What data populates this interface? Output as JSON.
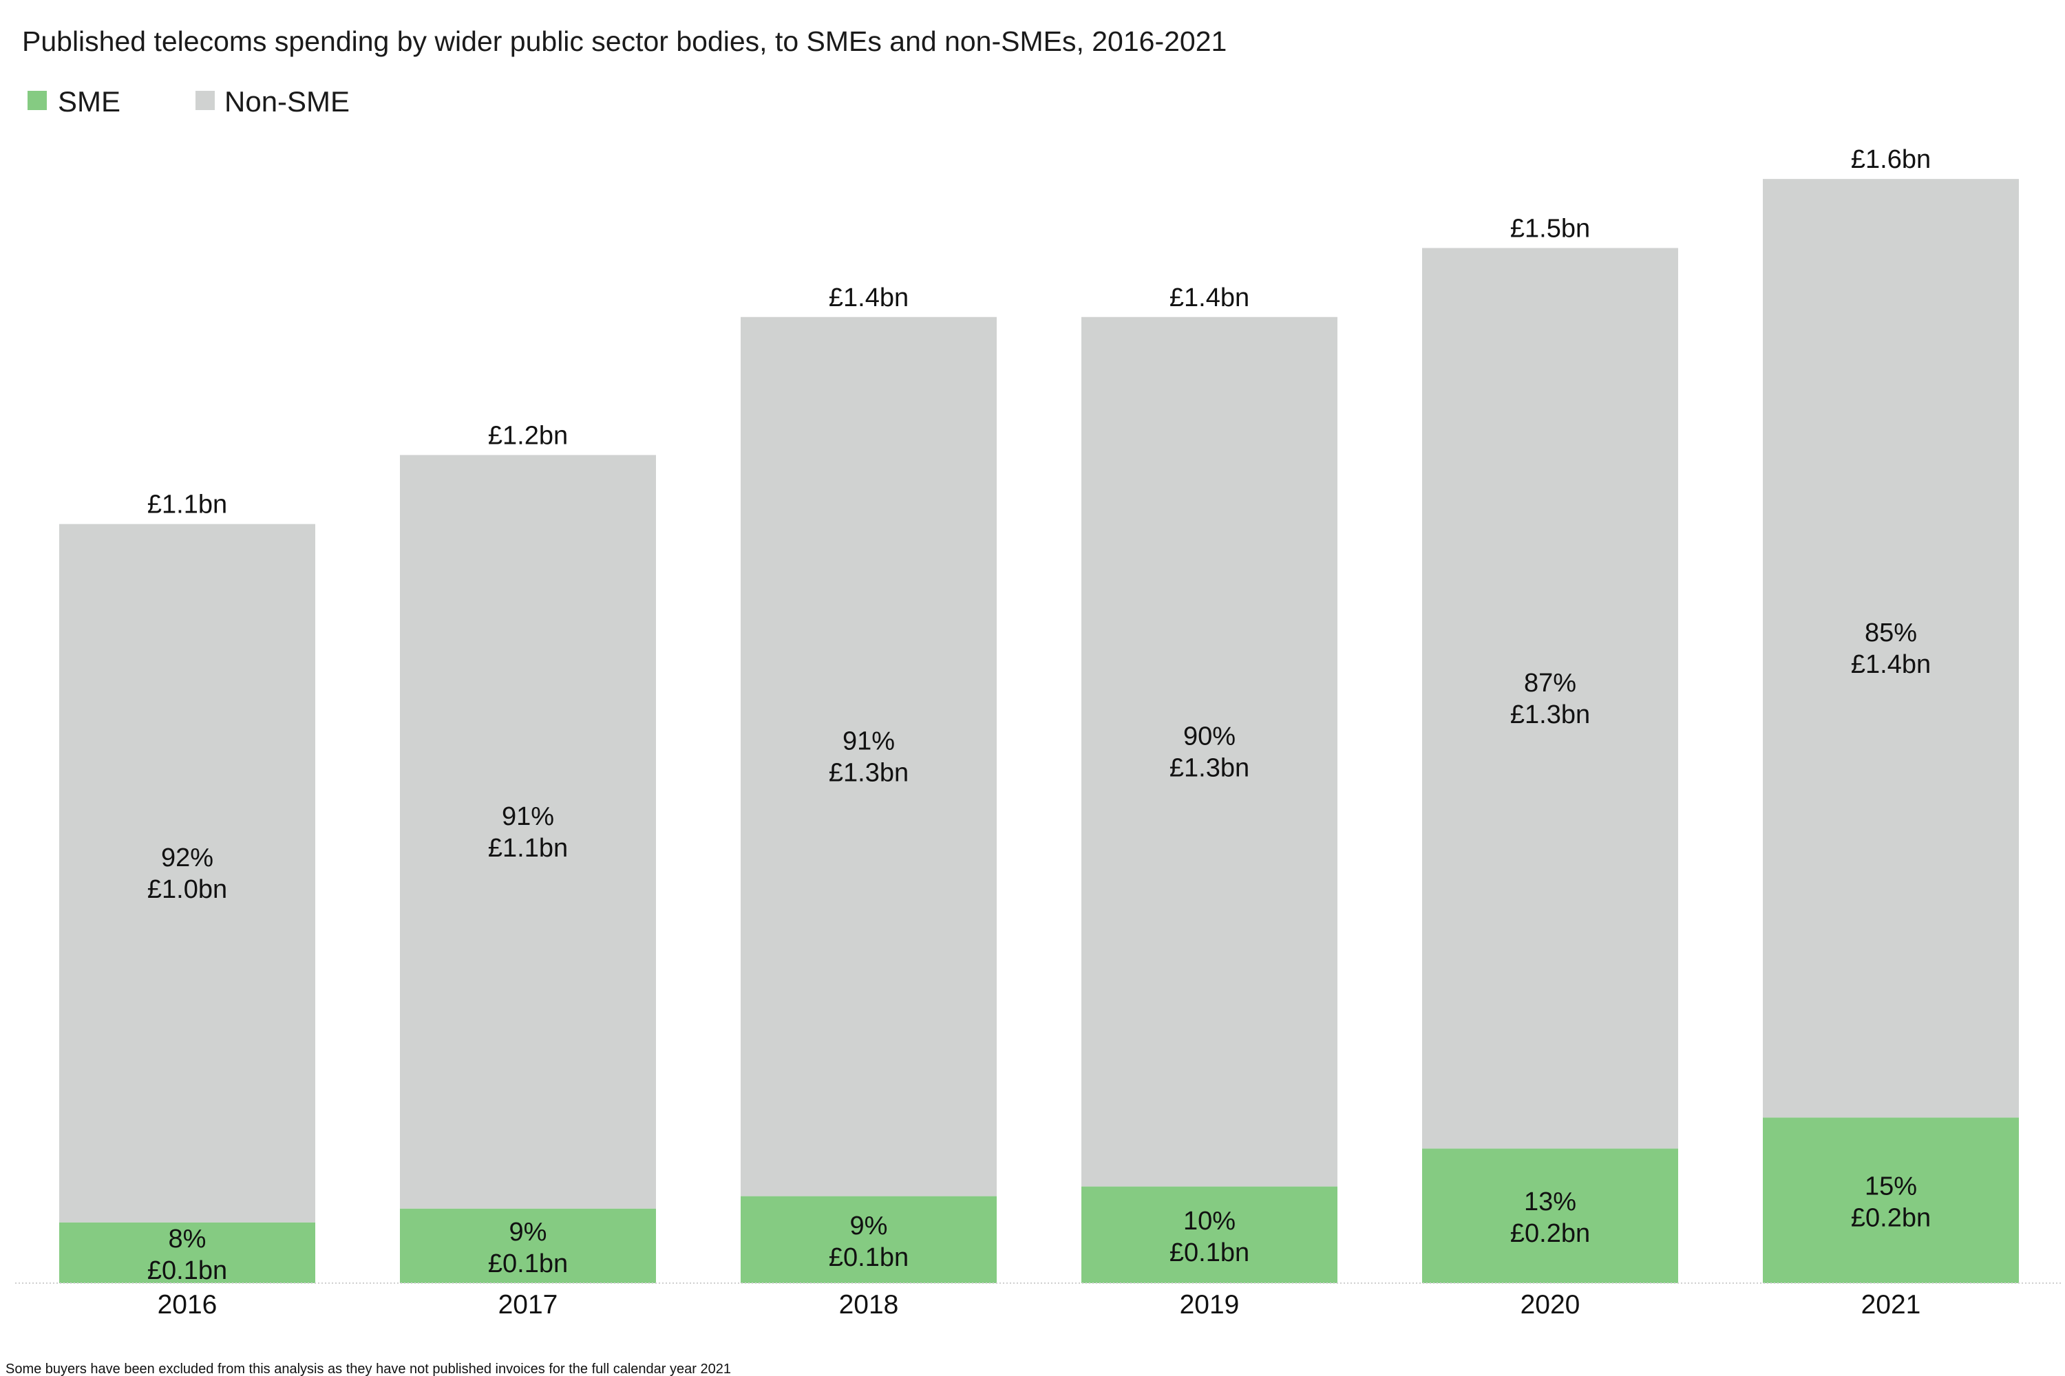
{
  "chart_data": {
    "type": "bar",
    "stacked": true,
    "title": "Published telecoms spending by wider public sector bodies, to SMEs and non-SMEs, 2016-2021",
    "categories": [
      "2016",
      "2017",
      "2018",
      "2019",
      "2020",
      "2021"
    ],
    "totals": [
      1.1,
      1.2,
      1.4,
      1.4,
      1.5,
      1.6
    ],
    "total_labels": [
      "£1.1bn",
      "£1.2bn",
      "£1.4bn",
      "£1.4bn",
      "£1.5bn",
      "£1.6bn"
    ],
    "series": [
      {
        "name": "SME",
        "color": "#85cb82",
        "share_pct": [
          8,
          9,
          9,
          10,
          13,
          15
        ],
        "pct_labels": [
          "8%",
          "9%",
          "9%",
          "10%",
          "13%",
          "15%"
        ],
        "value_labels": [
          "£0.1bn",
          "£0.1bn",
          "£0.1bn",
          "£0.1bn",
          "£0.2bn",
          "£0.2bn"
        ]
      },
      {
        "name": "Non-SME",
        "color": "#d0d2d1",
        "share_pct": [
          92,
          91,
          91,
          90,
          87,
          85
        ],
        "pct_labels": [
          "92%",
          "91%",
          "91%",
          "90%",
          "87%",
          "85%"
        ],
        "value_labels": [
          "£1.0bn",
          "£1.1bn",
          "£1.3bn",
          "£1.3bn",
          "£1.3bn",
          "£1.4bn"
        ]
      }
    ],
    "ylim": [
      0,
      1.65
    ],
    "grid": false,
    "legend_position": "top-left",
    "note": "Some buyers have been excluded from this analysis as they have not published invoices for the full calendar year 2021"
  }
}
